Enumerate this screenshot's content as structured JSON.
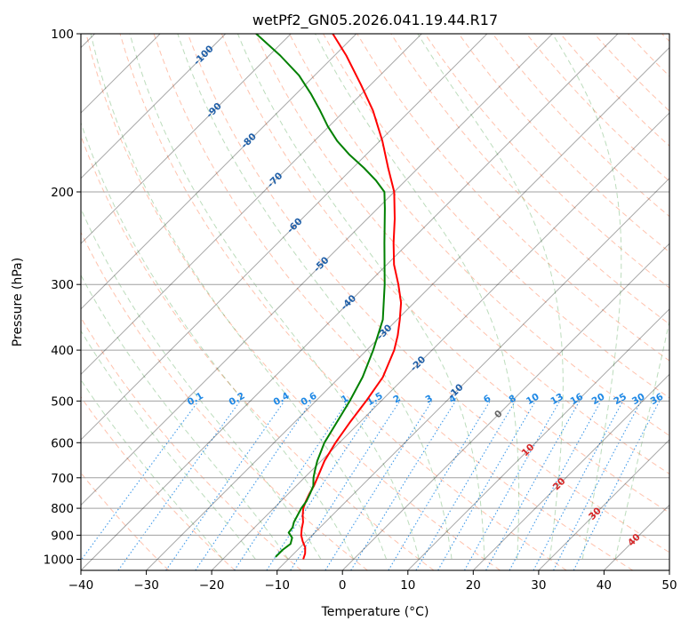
{
  "chart_data": {
    "type": "line",
    "subtype": "skew-T log-p diagram",
    "title": "wetPf2_GN05.2026.041.19.44.R17",
    "xlabel": "Temperature (°C)",
    "ylabel": "Pressure (hPa)",
    "xlim": [
      -40,
      50
    ],
    "ylim": [
      1050,
      100
    ],
    "y_scale": "log",
    "grid": true,
    "x_ticks": [
      "−40",
      "−30",
      "−20",
      "−10",
      "0",
      "10",
      "20",
      "30",
      "40",
      "50"
    ],
    "y_ticks": [
      "100",
      "200",
      "300",
      "400",
      "500",
      "600",
      "700",
      "800",
      "900",
      "1000"
    ],
    "series": [
      {
        "color": "#ff0000",
        "points": [
          [
            1000,
            -7.7
          ],
          [
            975,
            -8.3
          ],
          [
            950,
            -9.2
          ],
          [
            925,
            -10.5
          ],
          [
            900,
            -11.7
          ],
          [
            875,
            -12.6
          ],
          [
            850,
            -13.4
          ],
          [
            825,
            -14.5
          ],
          [
            800,
            -15.5
          ],
          [
            775,
            -16.2
          ],
          [
            750,
            -16.8
          ],
          [
            725,
            -17.3
          ],
          [
            700,
            -18.0
          ],
          [
            650,
            -19.5
          ],
          [
            600,
            -20.6
          ],
          [
            550,
            -21.5
          ],
          [
            500,
            -22.3
          ],
          [
            450,
            -23.4
          ],
          [
            400,
            -25.8
          ],
          [
            375,
            -27.5
          ],
          [
            350,
            -29.6
          ],
          [
            325,
            -32.0
          ],
          [
            300,
            -35.2
          ],
          [
            275,
            -38.9
          ],
          [
            250,
            -42.3
          ],
          [
            225,
            -45.8
          ],
          [
            200,
            -50.0
          ],
          [
            180,
            -54.6
          ],
          [
            160,
            -59.6
          ],
          [
            140,
            -65.7
          ],
          [
            125,
            -71.5
          ],
          [
            110,
            -78.2
          ],
          [
            100,
            -83.6
          ]
        ]
      },
      {
        "color": "#008000",
        "points": [
          [
            990,
            -12.3
          ],
          [
            960,
            -12.3
          ],
          [
            935,
            -12.0
          ],
          [
            910,
            -12.7
          ],
          [
            890,
            -14.0
          ],
          [
            870,
            -14.2
          ],
          [
            850,
            -14.8
          ],
          [
            820,
            -15.4
          ],
          [
            800,
            -15.8
          ],
          [
            775,
            -16.1
          ],
          [
            750,
            -16.7
          ],
          [
            725,
            -17.4
          ],
          [
            700,
            -18.6
          ],
          [
            675,
            -19.6
          ],
          [
            650,
            -20.6
          ],
          [
            600,
            -22.3
          ],
          [
            550,
            -23.5
          ],
          [
            500,
            -24.8
          ],
          [
            450,
            -26.5
          ],
          [
            400,
            -29.0
          ],
          [
            350,
            -32.2
          ],
          [
            300,
            -37.3
          ],
          [
            250,
            -43.7
          ],
          [
            215,
            -48.9
          ],
          [
            200,
            -51.5
          ],
          [
            190,
            -54.6
          ],
          [
            180,
            -58.3
          ],
          [
            170,
            -62.5
          ],
          [
            160,
            -66.5
          ],
          [
            150,
            -70.2
          ],
          [
            140,
            -73.8
          ],
          [
            130,
            -77.8
          ],
          [
            120,
            -82.4
          ],
          [
            110,
            -88.3
          ],
          [
            100,
            -95.3
          ]
        ]
      }
    ],
    "reference_lines": {
      "isotherms": {
        "color": "#000000",
        "interval_c": 10
      },
      "dry_adiabats": {
        "color": "#ff6633",
        "style": "dashed"
      },
      "moist_adiabats": {
        "color": "#228b22",
        "style": "dashed"
      },
      "mixing_ratio_lines": {
        "color": "#1e88e5",
        "style": "dotted"
      },
      "isotherm_labels": [
        "-100",
        "-90",
        "-80",
        "-70",
        "-60",
        "-50",
        "-40",
        "-30",
        "-20",
        "-10",
        "0",
        "10",
        "20",
        "30",
        "40"
      ],
      "mixing_ratio_labels": [
        "0.1",
        "0.2",
        "0.4",
        "0.6",
        "1",
        "1.5",
        "2",
        "3",
        "4",
        "6",
        "8",
        "10",
        "13",
        "16",
        "20",
        "25",
        "30",
        "36"
      ]
    }
  }
}
